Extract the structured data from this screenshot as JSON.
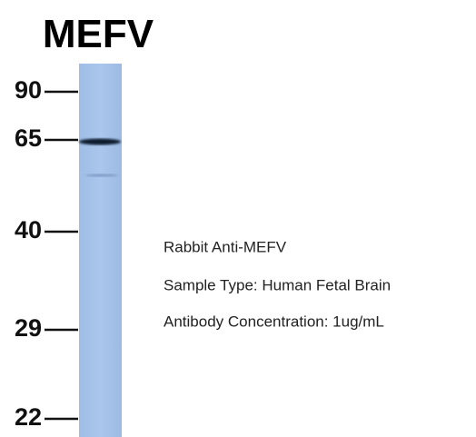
{
  "title": "MEFV",
  "markers": [
    "90",
    "65",
    "40",
    "29",
    "22"
  ],
  "annotation": [
    "Rabbit Anti-MEFV",
    "Sample Type: Human Fetal Brain",
    "Antibody Concentration: 1ug/mL"
  ]
}
